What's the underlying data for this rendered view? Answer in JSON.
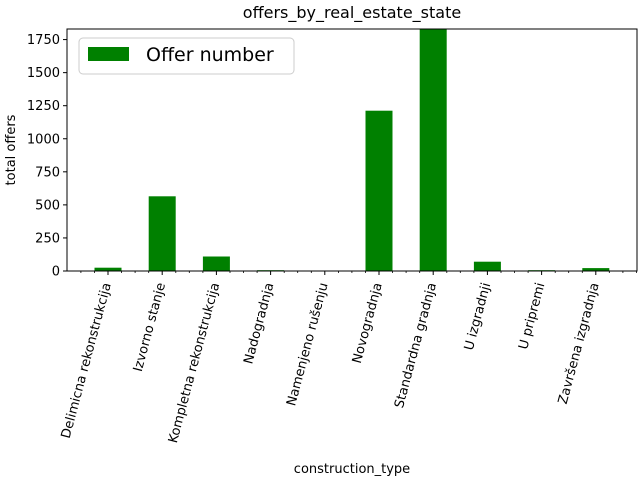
{
  "chart_data": {
    "type": "bar",
    "title": "offers_by_real_estate_state",
    "xlabel": "construction_type",
    "ylabel": "total offers",
    "categories": [
      "Delimicna rekonstrukcija",
      "Izvorno stanje",
      "Kompletna rekonstrukcija",
      "Nadogradnja",
      "Namenjeno rušenju",
      "Novogradnja",
      "Standardna gradnja",
      "U izgradnji",
      "U pripremi",
      "Završena izgradnja"
    ],
    "series": [
      {
        "name": "Offer number",
        "color": "#008000",
        "values": [
          25,
          565,
          110,
          6,
          4,
          1212,
          1835,
          70,
          6,
          22
        ]
      }
    ],
    "ylim": [
      0,
      1830
    ],
    "yticks": [
      0,
      250,
      500,
      750,
      1000,
      1250,
      1500,
      1750
    ],
    "legend": "top-left",
    "grid": false
  }
}
